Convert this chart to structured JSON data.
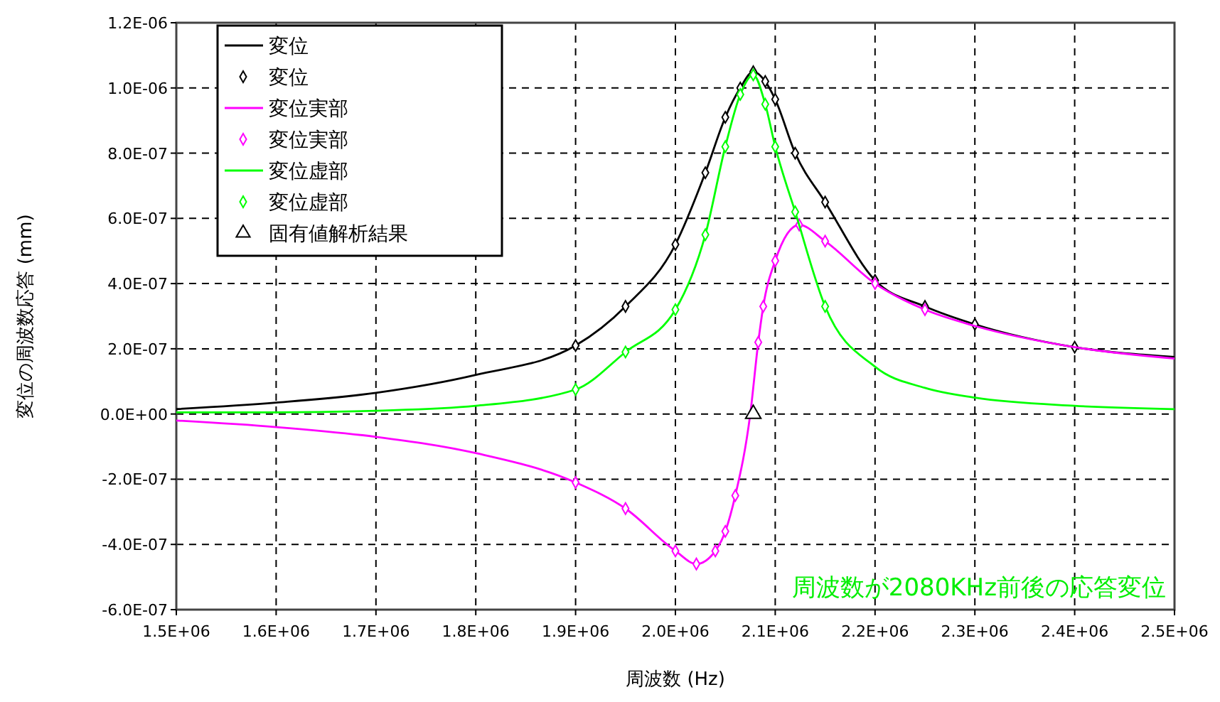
{
  "chart_data": {
    "type": "line",
    "xlabel": "周波数 (Hz)",
    "ylabel": "変位の周波数応答 (mm)",
    "xlim": [
      1500000,
      2500000
    ],
    "xticks": [
      {
        "value": 1500000,
        "label": "1.5E+06"
      },
      {
        "value": 1600000,
        "label": "1.6E+06"
      },
      {
        "value": 1700000,
        "label": "1.7E+06"
      },
      {
        "value": 1800000,
        "label": "1.8E+06"
      },
      {
        "value": 1900000,
        "label": "1.9E+06"
      },
      {
        "value": 2000000,
        "label": "2.0E+06"
      },
      {
        "value": 2100000,
        "label": "2.1E+06"
      },
      {
        "value": 2200000,
        "label": "2.2E+06"
      },
      {
        "value": 2300000,
        "label": "2.3E+06"
      },
      {
        "value": 2400000,
        "label": "2.4E+06"
      },
      {
        "value": 2500000,
        "label": "2.5E+06"
      }
    ],
    "ylim": [
      -6e-07,
      1.2e-06
    ],
    "yticks": [
      {
        "value": -6e-07,
        "label": "-6.0E-07"
      },
      {
        "value": -4e-07,
        "label": "-4.0E-07"
      },
      {
        "value": -2e-07,
        "label": "-2.0E-07"
      },
      {
        "value": 0,
        "label": "0.0E+00"
      },
      {
        "value": 2e-07,
        "label": "2.0E-07"
      },
      {
        "value": 4e-07,
        "label": "4.0E-07"
      },
      {
        "value": 6e-07,
        "label": "6.0E-07"
      },
      {
        "value": 8e-07,
        "label": "8.0E-07"
      },
      {
        "value": 1e-06,
        "label": "1.0E-06"
      },
      {
        "value": 1.2e-06,
        "label": "1.2E-06"
      }
    ],
    "grid": true,
    "legend": "top left",
    "line_style": "solid",
    "annotations": [
      "周波数が2080KHz前後の応答変位"
    ],
    "series": [
      {
        "name": "変位",
        "marker": "none",
        "color": "#000000",
        "x": [
          1500000,
          1600000,
          1700000,
          1800000,
          1900000,
          1950000,
          2000000,
          2030000,
          2050000,
          2065000,
          2078000,
          2090000,
          2100000,
          2120000,
          2150000,
          2200000,
          2250000,
          2300000,
          2400000,
          2500000
        ],
        "values": [
          1.5e-08,
          3.5e-08,
          6.5e-08,
          1.2e-07,
          2.1e-07,
          3.3e-07,
          5.2e-07,
          7.4e-07,
          9.1e-07,
          1e-06,
          1.05e-06,
          1.02e-06,
          9.65e-07,
          8e-07,
          6.5e-07,
          4.1e-07,
          3.3e-07,
          2.75e-07,
          2.05e-07,
          1.75e-07
        ]
      },
      {
        "name": "変位",
        "type": "scatter",
        "marker": "diamond",
        "color": "#000000",
        "x": [
          1900000,
          1950000,
          2000000,
          2030000,
          2050000,
          2065000,
          2078000,
          2090000,
          2100000,
          2120000,
          2150000,
          2200000,
          2250000,
          2300000,
          2400000
        ],
        "values": [
          2.1e-07,
          3.3e-07,
          5.2e-07,
          7.4e-07,
          9.1e-07,
          1e-06,
          1.05e-06,
          1.02e-06,
          9.65e-07,
          8e-07,
          6.5e-07,
          4.1e-07,
          3.3e-07,
          2.75e-07,
          2.05e-07
        ]
      },
      {
        "name": "変位実部",
        "marker": "none",
        "color": "#ff00ff",
        "x": [
          1500000,
          1600000,
          1700000,
          1800000,
          1900000,
          1950000,
          2000000,
          2021000,
          2040000,
          2050000,
          2060000,
          2075000,
          2083000,
          2088000,
          2100000,
          2124000,
          2150000,
          2200000,
          2250000,
          2300000,
          2400000,
          2500000
        ],
        "values": [
          -2e-08,
          -4e-08,
          -7e-08,
          -1.2e-07,
          -2.1e-07,
          -2.9e-07,
          -4.2e-07,
          -4.6e-07,
          -4.2e-07,
          -3.6e-07,
          -2.5e-07,
          0,
          2.2e-07,
          3.3e-07,
          4.7e-07,
          5.8e-07,
          5.3e-07,
          4e-07,
          3.2e-07,
          2.7e-07,
          2.05e-07,
          1.7e-07
        ]
      },
      {
        "name": "変位実部",
        "type": "scatter",
        "marker": "diamond",
        "color": "#ff00ff",
        "x": [
          1900000,
          1950000,
          2000000,
          2021000,
          2040000,
          2050000,
          2060000,
          2083000,
          2088000,
          2100000,
          2124000,
          2150000,
          2200000,
          2250000
        ],
        "values": [
          -2.1e-07,
          -2.9e-07,
          -4.2e-07,
          -4.6e-07,
          -4.2e-07,
          -3.6e-07,
          -2.5e-07,
          2.2e-07,
          3.3e-07,
          4.7e-07,
          5.8e-07,
          5.3e-07,
          4e-07,
          3.2e-07
        ]
      },
      {
        "name": "変位虚部",
        "marker": "none",
        "color": "#00ff00",
        "x": [
          1500000,
          1600000,
          1700000,
          1800000,
          1900000,
          1950000,
          2000000,
          2030000,
          2050000,
          2065000,
          2078000,
          2090000,
          2100000,
          2120000,
          2150000,
          2200000,
          2250000,
          2300000,
          2400000,
          2500000
        ],
        "values": [
          5e-09,
          5e-09,
          1e-08,
          2.5e-08,
          7.5e-08,
          1.9e-07,
          3.2e-07,
          5.5e-07,
          8.2e-07,
          9.8e-07,
          1.04e-06,
          9.5e-07,
          8.2e-07,
          6.2e-07,
          3.3e-07,
          1.45e-07,
          8e-08,
          5e-08,
          2.5e-08,
          1.5e-08
        ]
      },
      {
        "name": "変位虚部",
        "type": "scatter",
        "marker": "diamond",
        "color": "#00ff00",
        "x": [
          1900000,
          1950000,
          2000000,
          2030000,
          2050000,
          2065000,
          2078000,
          2090000,
          2100000,
          2120000,
          2150000
        ],
        "values": [
          7.5e-08,
          1.9e-07,
          3.2e-07,
          5.5e-07,
          8.2e-07,
          9.8e-07,
          1.04e-06,
          9.5e-07,
          8.2e-07,
          6.2e-07,
          3.3e-07
        ]
      },
      {
        "name": "固有値解析結果",
        "type": "scatter",
        "marker": "triangle",
        "color": "#000000",
        "x": [
          2078000
        ],
        "values": [
          0
        ]
      }
    ]
  }
}
